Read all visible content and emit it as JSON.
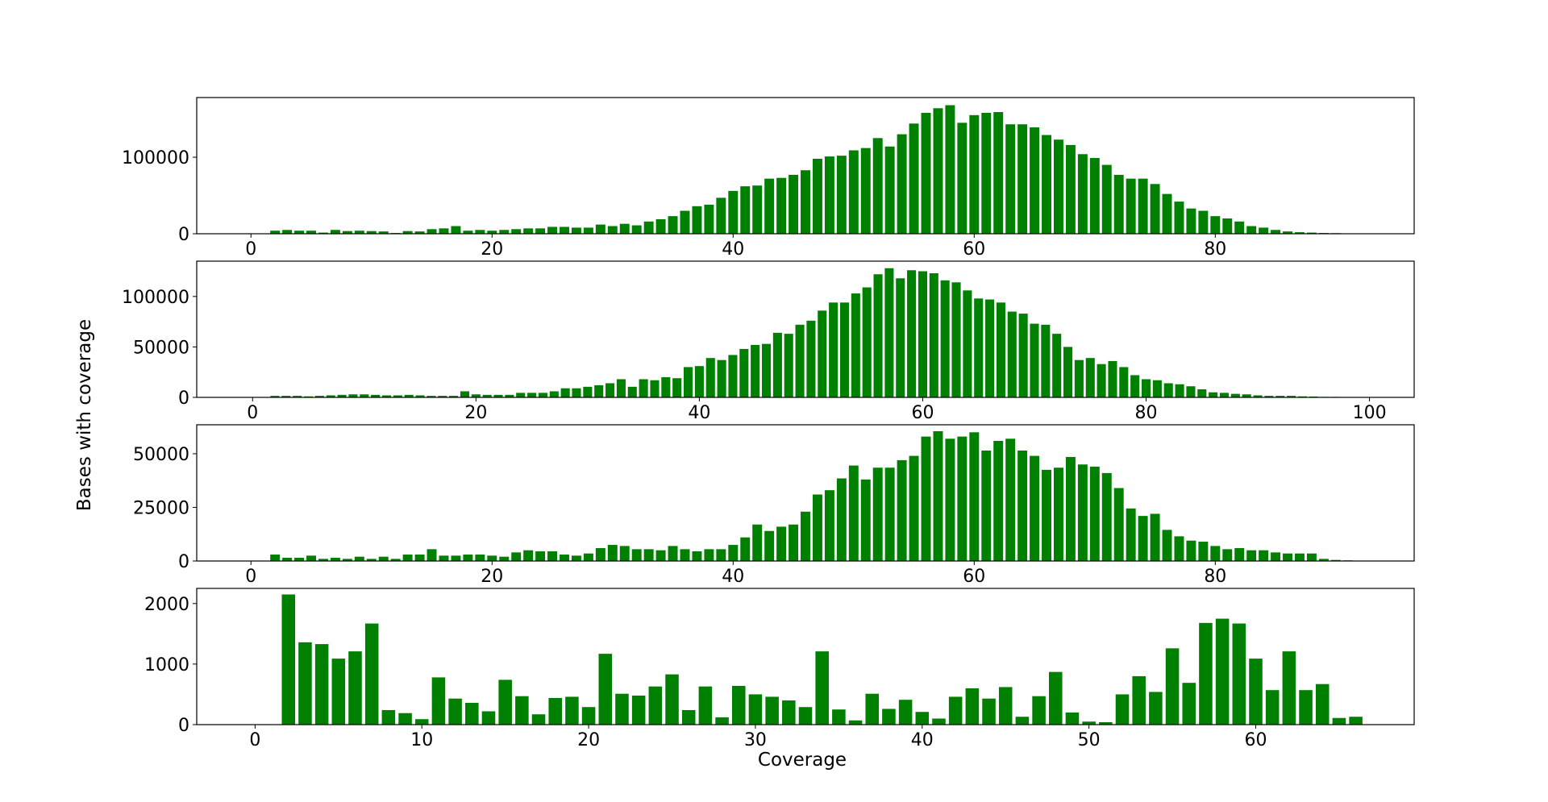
{
  "figure": {
    "ylabel": "Bases with coverage",
    "xlabel": "Coverage",
    "bar_color": "#008000"
  },
  "chart_data": [
    {
      "type": "bar",
      "xlim": [
        -4.5,
        96.5
      ],
      "ylim": [
        0,
        178000
      ],
      "xticks": [
        0,
        20,
        40,
        60,
        80
      ],
      "yticks": [
        0,
        100000
      ],
      "x_start": 2,
      "values": [
        4000,
        5000,
        4000,
        4000,
        1500,
        5000,
        3500,
        4000,
        3500,
        3000,
        1000,
        3500,
        3000,
        6000,
        7000,
        10000,
        4000,
        5000,
        4000,
        5000,
        6000,
        7000,
        7000,
        9000,
        9000,
        8000,
        8000,
        12000,
        10000,
        13000,
        11000,
        16000,
        19000,
        23000,
        30000,
        36000,
        38000,
        47000,
        56000,
        62000,
        63000,
        72000,
        73000,
        77000,
        83000,
        98000,
        101000,
        102000,
        109000,
        112000,
        125000,
        114000,
        130000,
        144000,
        158000,
        164000,
        168000,
        145000,
        155000,
        158000,
        159000,
        143000,
        143000,
        139000,
        129000,
        123000,
        116000,
        104000,
        99000,
        90000,
        77000,
        72000,
        72000,
        65000,
        52000,
        42000,
        33000,
        30000,
        23000,
        20000,
        16000,
        10000,
        8000,
        5000,
        3000,
        2000,
        1500,
        1000,
        800,
        500
      ]
    },
    {
      "type": "bar",
      "xlim": [
        -5,
        104
      ],
      "ylim": [
        0,
        135000
      ],
      "xticks": [
        0,
        20,
        40,
        60,
        80,
        100
      ],
      "yticks": [
        0,
        50000,
        100000
      ],
      "x_start": 2,
      "values": [
        1500,
        1500,
        1500,
        1000,
        1500,
        2000,
        2500,
        3000,
        3000,
        2500,
        2000,
        2000,
        2500,
        2000,
        1500,
        1500,
        1500,
        6000,
        3000,
        2500,
        2500,
        2500,
        4500,
        4500,
        4500,
        6000,
        9000,
        9000,
        10500,
        12000,
        14000,
        18000,
        10500,
        18000,
        17000,
        20000,
        19000,
        30000,
        31000,
        39000,
        37000,
        42000,
        48000,
        52000,
        53000,
        64000,
        63000,
        72000,
        76000,
        86000,
        94000,
        94000,
        103000,
        109000,
        122000,
        128000,
        118000,
        126000,
        125000,
        123000,
        116000,
        114000,
        106000,
        98000,
        97000,
        94000,
        85000,
        83000,
        73000,
        72000,
        63000,
        50000,
        37000,
        39000,
        33000,
        36000,
        30000,
        22000,
        18000,
        17000,
        14000,
        13000,
        11000,
        8000,
        5000,
        4500,
        3500,
        3000,
        2000,
        1500,
        1500,
        1500,
        1000,
        800,
        500,
        500
      ]
    },
    {
      "type": "bar",
      "xlim": [
        -4.5,
        96.5
      ],
      "ylim": [
        0,
        63500
      ],
      "xticks": [
        0,
        20,
        40,
        60,
        80
      ],
      "yticks": [
        0,
        25000,
        50000
      ],
      "x_start": 2,
      "values": [
        3000,
        1500,
        1500,
        2500,
        1000,
        1500,
        1000,
        2000,
        1000,
        2000,
        1000,
        3000,
        3000,
        5500,
        2500,
        2500,
        3000,
        3000,
        2500,
        2000,
        4000,
        5000,
        4500,
        4500,
        3000,
        2500,
        3500,
        6000,
        7500,
        7000,
        5500,
        5500,
        5000,
        7000,
        5500,
        4500,
        5500,
        5500,
        7500,
        11000,
        17000,
        14000,
        16000,
        17000,
        23000,
        31000,
        33000,
        38500,
        44500,
        38000,
        43500,
        43500,
        47000,
        49000,
        58000,
        60500,
        57000,
        58000,
        60000,
        51500,
        56000,
        57000,
        51500,
        49000,
        42500,
        43500,
        48500,
        45000,
        44000,
        41000,
        34000,
        24500,
        21000,
        22000,
        14500,
        11500,
        9500,
        9000,
        7000,
        5500,
        6000,
        5000,
        5000,
        4000,
        3500,
        3500,
        3500,
        1000,
        500,
        300
      ]
    },
    {
      "type": "bar",
      "xlim": [
        -3.5,
        69.5
      ],
      "ylim": [
        0,
        2250
      ],
      "xticks": [
        0,
        10,
        20,
        30,
        40,
        50,
        60
      ],
      "yticks": [
        0,
        1000,
        2000
      ],
      "x_start": 2,
      "values": [
        2150,
        1360,
        1330,
        1090,
        1210,
        1670,
        240,
        190,
        90,
        780,
        430,
        360,
        220,
        740,
        470,
        170,
        440,
        460,
        290,
        1170,
        510,
        480,
        630,
        830,
        240,
        630,
        120,
        640,
        500,
        460,
        400,
        290,
        1210,
        250,
        70,
        510,
        260,
        410,
        210,
        100,
        460,
        600,
        430,
        620,
        130,
        470,
        870,
        200,
        50,
        40,
        500,
        800,
        540,
        1260,
        690,
        1680,
        1750,
        1670,
        1090,
        570,
        1210,
        570,
        670,
        110,
        130
      ]
    }
  ]
}
